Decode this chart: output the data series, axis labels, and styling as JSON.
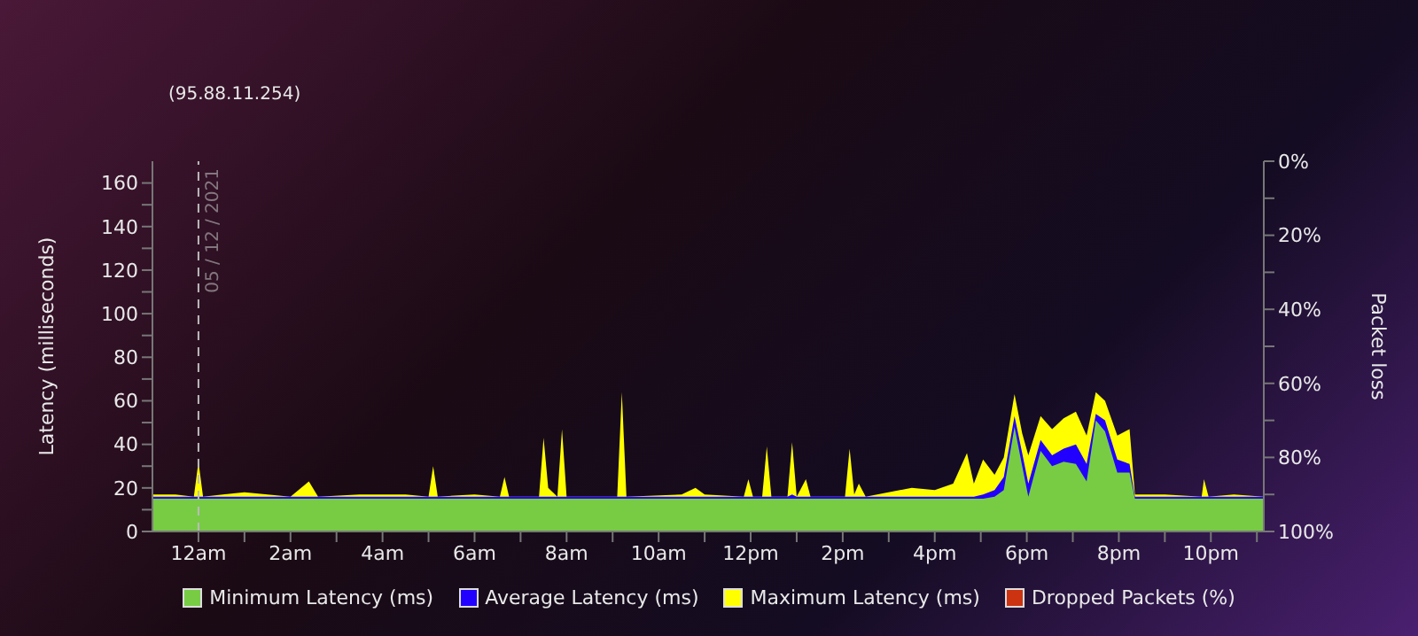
{
  "chart_data": {
    "type": "area",
    "subtitle": "(95.88.11.254)",
    "ylabel": "Latency (milliseconds)",
    "y2label": "Packet loss",
    "x": [
      "2021-12-04T23:00",
      "2021-12-04T23:30",
      "2021-12-04T23:54",
      "2021-12-05T00:00",
      "2021-12-05T00:06",
      "2021-12-05T01:00",
      "2021-12-05T02:00",
      "2021-12-05T02:24",
      "2021-12-05T02:36",
      "2021-12-05T03:30",
      "2021-12-05T04:30",
      "2021-12-05T05:00",
      "2021-12-05T05:06",
      "2021-12-05T05:12",
      "2021-12-05T06:00",
      "2021-12-05T06:33",
      "2021-12-05T06:39",
      "2021-12-05T06:45",
      "2021-12-05T07:24",
      "2021-12-05T07:30",
      "2021-12-05T07:36",
      "2021-12-05T07:48",
      "2021-12-05T07:54",
      "2021-12-05T08:00",
      "2021-12-05T09:06",
      "2021-12-05T09:12",
      "2021-12-05T09:18",
      "2021-12-05T10:30",
      "2021-12-05T10:48",
      "2021-12-05T11:00",
      "2021-12-05T11:51",
      "2021-12-05T11:57",
      "2021-12-05T12:03",
      "2021-12-05T12:15",
      "2021-12-05T12:21",
      "2021-12-05T12:27",
      "2021-12-05T12:48",
      "2021-12-05T12:54",
      "2021-12-05T13:00",
      "2021-12-05T13:12",
      "2021-12-05T13:18",
      "2021-12-05T14:03",
      "2021-12-05T14:09",
      "2021-12-05T14:15",
      "2021-12-05T14:21",
      "2021-12-05T14:30",
      "2021-12-05T15:30",
      "2021-12-05T16:00",
      "2021-12-05T16:24",
      "2021-12-05T16:42",
      "2021-12-05T16:51",
      "2021-12-05T17:03",
      "2021-12-05T17:18",
      "2021-12-05T17:30",
      "2021-12-05T17:44",
      "2021-12-05T17:54",
      "2021-12-05T18:02",
      "2021-12-05T18:18",
      "2021-12-05T18:33",
      "2021-12-05T18:48",
      "2021-12-05T19:04",
      "2021-12-05T19:18",
      "2021-12-05T19:30",
      "2021-12-05T19:42",
      "2021-12-05T19:58",
      "2021-12-05T20:14",
      "2021-12-05T20:21",
      "2021-12-05T21:00",
      "2021-12-05T21:48",
      "2021-12-05T21:51",
      "2021-12-05T21:57",
      "2021-12-05T22:30",
      "2021-12-05T23:09"
    ],
    "series": [
      {
        "name": "Minimum Latency (ms)",
        "color": "#77cc44",
        "values": [
          15,
          15,
          15,
          15,
          15,
          15,
          15,
          15,
          15,
          15,
          15,
          15,
          15,
          15,
          15,
          15,
          15,
          15,
          15,
          15,
          15,
          15,
          15,
          15,
          15,
          15,
          15,
          15,
          15,
          15,
          15,
          15,
          15,
          15,
          15,
          15,
          15,
          15,
          15,
          15,
          15,
          15,
          15,
          15,
          15,
          15,
          15,
          15,
          15,
          15,
          15,
          15,
          16,
          19,
          48,
          30,
          16,
          37,
          30,
          32,
          31,
          23,
          51,
          46,
          27,
          27,
          15,
          15,
          15,
          15,
          15,
          15,
          15
        ]
      },
      {
        "name": "Average Latency (ms)",
        "color": "#2200ff",
        "values": [
          16,
          16,
          16,
          16,
          16,
          16,
          16,
          16,
          16,
          16,
          16,
          16,
          16,
          16,
          16,
          16,
          16,
          16,
          16,
          16,
          16,
          16,
          16,
          16,
          16,
          16,
          16,
          16,
          16,
          16,
          16,
          16,
          16,
          16,
          16,
          16,
          16,
          17,
          16,
          16,
          16,
          16,
          16,
          16,
          16,
          16,
          16,
          16,
          16,
          16,
          16,
          17,
          19,
          25,
          53,
          36,
          22,
          42,
          35,
          38,
          40,
          31,
          54,
          51,
          33,
          31,
          16,
          16,
          16,
          16,
          16,
          16,
          16
        ]
      },
      {
        "name": "Maximum Latency (ms)",
        "color": "#ffff00",
        "values": [
          17,
          17,
          16,
          32,
          16,
          18,
          16,
          23,
          16,
          17,
          17,
          16,
          30,
          16,
          17,
          16,
          25,
          16,
          16,
          43,
          20,
          16,
          47,
          16,
          16,
          64,
          16,
          17,
          20,
          17,
          16,
          24,
          16,
          16,
          39,
          16,
          16,
          41,
          16,
          24,
          16,
          16,
          38,
          17,
          22,
          16,
          20,
          19,
          22,
          36,
          22,
          33,
          26,
          34,
          63,
          45,
          35,
          53,
          47,
          52,
          55,
          44,
          64,
          60,
          44,
          47,
          17,
          17,
          16,
          24,
          16,
          17,
          16
        ]
      },
      {
        "name": "Dropped Packets (%)",
        "color": "#cc3311",
        "values": [
          null,
          null,
          null,
          null,
          null,
          null,
          null,
          null,
          null,
          null,
          null,
          null,
          null,
          null,
          null,
          null,
          null,
          null,
          null,
          null,
          null,
          null,
          null,
          null,
          null,
          null,
          null,
          null,
          null,
          null,
          null,
          null,
          null,
          null,
          null,
          null,
          null,
          null,
          null,
          null,
          null,
          null,
          null,
          null,
          null,
          null,
          null,
          null,
          null,
          null,
          null,
          null,
          null,
          null,
          null,
          null,
          null,
          null,
          null,
          null,
          null,
          null,
          null,
          null,
          null,
          null,
          null,
          null,
          null,
          null,
          null,
          null,
          null
        ]
      }
    ],
    "xlim": [
      "2021-12-04T23:00",
      "2021-12-05T23:09"
    ],
    "xticks": [
      {
        "value": "2021-12-05T00:00",
        "label": "12am"
      },
      {
        "value": "2021-12-05T01:00",
        "label": null
      },
      {
        "value": "2021-12-05T02:00",
        "label": "2am"
      },
      {
        "value": "2021-12-05T03:00",
        "label": null
      },
      {
        "value": "2021-12-05T04:00",
        "label": "4am"
      },
      {
        "value": "2021-12-05T05:00",
        "label": null
      },
      {
        "value": "2021-12-05T06:00",
        "label": "6am"
      },
      {
        "value": "2021-12-05T07:00",
        "label": null
      },
      {
        "value": "2021-12-05T08:00",
        "label": "8am"
      },
      {
        "value": "2021-12-05T09:00",
        "label": null
      },
      {
        "value": "2021-12-05T10:00",
        "label": "10am"
      },
      {
        "value": "2021-12-05T11:00",
        "label": null
      },
      {
        "value": "2021-12-05T12:00",
        "label": "12pm"
      },
      {
        "value": "2021-12-05T13:00",
        "label": null
      },
      {
        "value": "2021-12-05T14:00",
        "label": "2pm"
      },
      {
        "value": "2021-12-05T15:00",
        "label": null
      },
      {
        "value": "2021-12-05T16:00",
        "label": "4pm"
      },
      {
        "value": "2021-12-05T17:00",
        "label": null
      },
      {
        "value": "2021-12-05T18:00",
        "label": "6pm"
      },
      {
        "value": "2021-12-05T19:00",
        "label": null
      },
      {
        "value": "2021-12-05T20:00",
        "label": "8pm"
      },
      {
        "value": "2021-12-05T21:00",
        "label": null
      },
      {
        "value": "2021-12-05T22:00",
        "label": "10pm"
      },
      {
        "value": "2021-12-05T23:00",
        "label": null
      }
    ],
    "ylim": [
      0,
      170
    ],
    "yticks": [
      0,
      {
        "value": 10,
        "label": null
      },
      20,
      {
        "value": 30,
        "label": null
      },
      40,
      {
        "value": 50,
        "label": null
      },
      60,
      {
        "value": 70,
        "label": null
      },
      80,
      {
        "value": 90,
        "label": null
      },
      100,
      {
        "value": 110,
        "label": null
      },
      120,
      {
        "value": 130,
        "label": null
      },
      140,
      {
        "value": 150,
        "label": null
      },
      160
    ],
    "y2lim": [
      100,
      0
    ],
    "y2ticks": [
      {
        "value": 0,
        "label": "0%"
      },
      {
        "value": 10,
        "label": null
      },
      {
        "value": 20,
        "label": "20%"
      },
      {
        "value": 30,
        "label": null
      },
      {
        "value": 40,
        "label": "40%"
      },
      {
        "value": 50,
        "label": null
      },
      {
        "value": 60,
        "label": "60%"
      },
      {
        "value": 70,
        "label": null
      },
      {
        "value": 80,
        "label": "80%"
      },
      {
        "value": 90,
        "label": null
      },
      {
        "value": 100,
        "label": "100%"
      }
    ],
    "ref_lines": [
      {
        "axis": "x",
        "value": "2021-12-05T00:00",
        "label": "05 / 12 / 2021",
        "color": "#bbbbbb",
        "line_style": "dashed"
      }
    ],
    "grid": false,
    "legend": "bottom"
  }
}
